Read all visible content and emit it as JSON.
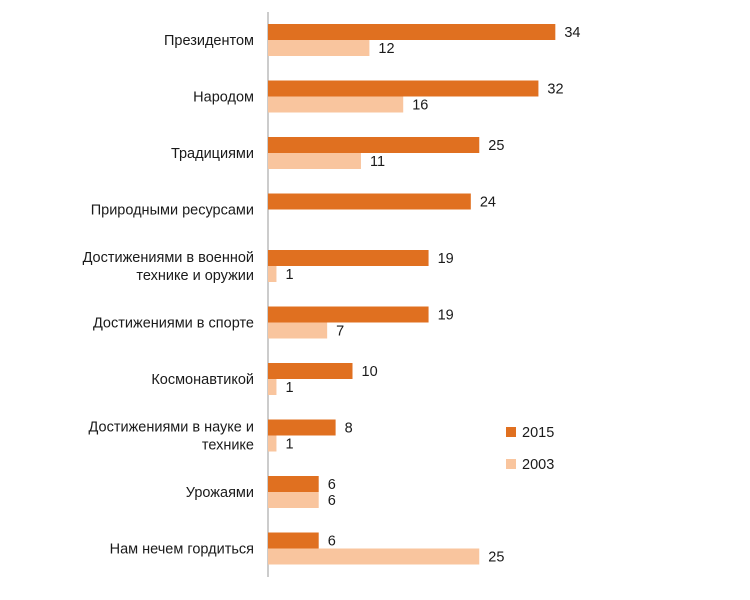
{
  "chart_data": {
    "type": "bar",
    "orientation": "horizontal",
    "title": "",
    "xlabel": "",
    "ylabel": "",
    "xlim": [
      0,
      36
    ],
    "grid": false,
    "legend_position": "right",
    "categories": [
      "Президентом",
      "Народом",
      "Традициями",
      "Природными ресурсами",
      "Достижениями в военной технике и оружии",
      "Достижениями в спорте",
      "Космонавтикой",
      "Достижениями в науке и технике",
      "Урожаями",
      "Нам нечем гордиться"
    ],
    "category_lines": [
      [
        "Президентом"
      ],
      [
        "Народом"
      ],
      [
        "Традициями"
      ],
      [
        "Природными ресурсами"
      ],
      [
        "Достижениями в военной",
        "технике и оружии"
      ],
      [
        "Достижениями в спорте"
      ],
      [
        "Космонавтикой"
      ],
      [
        "Достижениями в науке и",
        "технике"
      ],
      [
        "Урожаями"
      ],
      [
        "Нам нечем гордиться"
      ]
    ],
    "series": [
      {
        "name": "2015",
        "color": "#E07020",
        "values": [
          34,
          32,
          25,
          24,
          19,
          19,
          10,
          8,
          6,
          6
        ]
      },
      {
        "name": "2003",
        "color": "#F9C59E",
        "values": [
          12,
          16,
          11,
          null,
          1,
          7,
          1,
          1,
          6,
          25
        ]
      }
    ]
  }
}
